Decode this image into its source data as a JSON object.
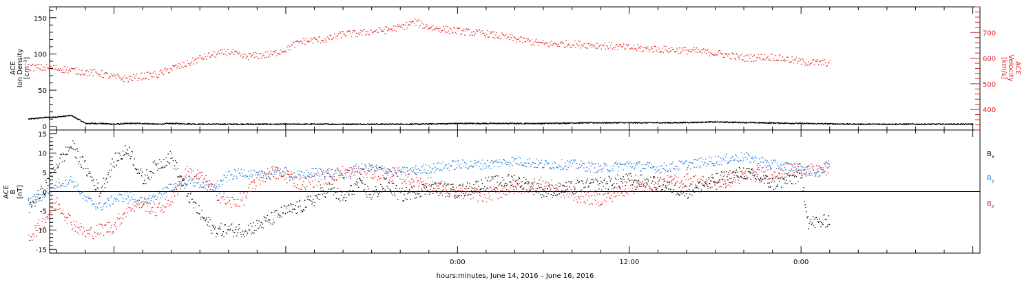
{
  "chart_data": [
    {
      "type": "scatter",
      "ylabel_lines": [
        "ACE",
        "Ion Density",
        "[cm⁻³]"
      ],
      "ylim": [
        -5,
        165
      ],
      "yticks": [
        0,
        50,
        100,
        150
      ],
      "y2label_lines": [
        "ACE",
        "Velocity",
        "[km/s]"
      ],
      "y2lim": [
        320,
        800
      ],
      "y2ticks": [
        400,
        500,
        600,
        700
      ],
      "series": [
        {
          "axis": "left",
          "color": "#000000",
          "x_hours": [
            -30,
            -29,
            -28,
            -27,
            -26,
            -25,
            -24,
            -23,
            -22,
            -21,
            -20,
            -18,
            -15,
            -12,
            -9,
            -6,
            -3,
            0,
            3,
            6,
            9,
            12,
            15,
            18,
            21,
            24,
            28,
            32,
            36
          ],
          "values": [
            10,
            12,
            13,
            15,
            4,
            4,
            3,
            4,
            4,
            3,
            4,
            3,
            3,
            3,
            3,
            3,
            3,
            4,
            4,
            4,
            5,
            5,
            5,
            6,
            5,
            4,
            3,
            3,
            3
          ]
        },
        {
          "axis": "right",
          "color": "#e31a1c",
          "x_hours": [
            -30,
            -28,
            -26,
            -25,
            -24,
            -23,
            -22,
            -21,
            -20,
            -19,
            -18,
            -17,
            -16,
            -15,
            -13,
            -12,
            -11,
            -10,
            -9,
            -8,
            -7,
            -6,
            -5,
            -4,
            -3,
            -2,
            0,
            2,
            4,
            6,
            8,
            10,
            12,
            14,
            16,
            18,
            20,
            22,
            24,
            26
          ],
          "values": [
            565,
            560,
            545,
            540,
            525,
            520,
            530,
            535,
            560,
            575,
            600,
            615,
            625,
            605,
            615,
            635,
            665,
            670,
            675,
            695,
            695,
            705,
            710,
            720,
            740,
            720,
            705,
            695,
            675,
            655,
            655,
            650,
            640,
            635,
            630,
            620,
            600,
            605,
            585,
            580
          ]
        }
      ]
    },
    {
      "type": "scatter",
      "ylabel_lines": [
        "ACE",
        "B",
        "[nT]"
      ],
      "ylim": [
        -16,
        16
      ],
      "yticks": [
        -15,
        -10,
        -5,
        0,
        5,
        10,
        15
      ],
      "zero_line": true,
      "series": [
        {
          "name": "Bx",
          "color": "#000000",
          "x_hours": [
            -30,
            -29,
            -28,
            -27,
            -26,
            -25,
            -24,
            -23,
            -22,
            -21,
            -20,
            -19,
            -18,
            -17,
            -16,
            -15,
            -14,
            -13,
            -12,
            -11,
            -10,
            -9,
            -8,
            -7,
            -6,
            -5,
            -4,
            -2,
            0,
            2,
            4,
            6,
            8,
            10,
            12,
            14,
            16,
            18,
            20,
            22,
            24,
            24.5,
            25.5,
            26
          ],
          "values": [
            -4,
            0,
            7,
            12,
            6,
            0,
            8,
            11,
            3,
            7,
            9,
            0,
            -6,
            -10,
            -10,
            -10,
            -9,
            -7,
            -5,
            -4,
            -2,
            1,
            -2,
            2,
            -1,
            2,
            -1,
            1,
            0,
            2,
            3,
            0,
            1,
            2,
            3,
            2,
            0,
            3,
            5,
            2,
            4,
            -8,
            -8,
            -7
          ]
        },
        {
          "name": "By",
          "color": "#1a78d8",
          "x_hours": [
            -30,
            -29,
            -28,
            -27,
            -26,
            -25,
            -24,
            -23,
            -22,
            -21,
            -20,
            -19,
            -18,
            -17,
            -16,
            -15,
            -14,
            -13,
            -12,
            -11,
            -10,
            -9,
            -8,
            -7,
            -6,
            -4,
            -2,
            0,
            2,
            4,
            6,
            8,
            10,
            12,
            14,
            16,
            18,
            20,
            22,
            24,
            25,
            26
          ],
          "values": [
            -3,
            -1,
            2,
            3,
            -2,
            -4,
            -2,
            -1,
            -3,
            -1,
            1,
            3,
            2,
            1,
            4,
            5,
            4,
            5,
            5,
            4,
            5,
            5,
            4,
            6,
            6,
            5,
            6,
            7,
            7,
            8,
            7,
            7,
            6,
            7,
            6,
            7,
            8,
            9,
            7,
            6,
            5,
            7
          ]
        },
        {
          "name": "Bz",
          "color": "#e31a1c",
          "x_hours": [
            -30,
            -29,
            -28,
            -27,
            -26,
            -25,
            -24,
            -23,
            -22,
            -21,
            -20,
            -19,
            -18,
            -17,
            -16,
            -15,
            -14,
            -13,
            -12,
            -11,
            -10,
            -9,
            -8,
            -7,
            -6,
            -4,
            -2,
            0,
            2,
            4,
            6,
            8,
            10,
            12,
            14,
            16,
            18,
            20,
            22,
            24,
            25,
            26
          ],
          "values": [
            -12,
            -8,
            -3,
            -8,
            -11,
            -10,
            -9,
            -4,
            -3,
            -5,
            -2,
            5,
            4,
            0,
            -3,
            -2,
            3,
            5,
            4,
            2,
            3,
            4,
            5,
            5,
            5,
            4,
            2,
            0,
            -1,
            1,
            2,
            -1,
            -2,
            1,
            2,
            3,
            2,
            4,
            5,
            6,
            5,
            6
          ]
        }
      ],
      "legend": [
        {
          "text": "B",
          "sub": "x",
          "color": "#000000"
        },
        {
          "text": "B",
          "sub": "y",
          "color": "#1a78d8"
        },
        {
          "text": "B",
          "sub": "z",
          "color": "#e31a1c"
        }
      ]
    }
  ],
  "x_axis": {
    "xlim_hours": [
      -28.5,
      36.5
    ],
    "tick_labels": [
      {
        "label": "0:00",
        "hour": 0
      },
      {
        "label": "12:00",
        "hour": 12
      },
      {
        "label": "0:00",
        "hour": 24
      }
    ],
    "minor_tick_step_hours": 2,
    "title": "hours:minutes, June 14, 2016 – June 16, 2016"
  }
}
